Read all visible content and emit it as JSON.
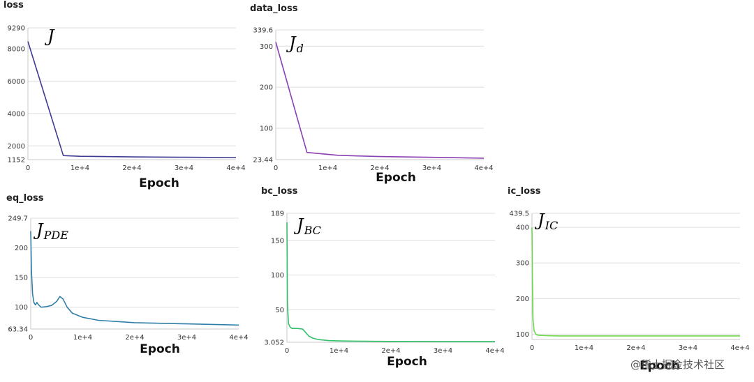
{
  "chart_data": [
    {
      "type": "line",
      "title": "loss",
      "annotation": {
        "main": "J",
        "sub": ""
      },
      "xlabel": "Epoch",
      "color": "#3f3a93",
      "xlim": [
        0,
        40000
      ],
      "ylim": [
        1152,
        9290
      ],
      "yticks": [
        1152,
        2000,
        4000,
        6000,
        8000,
        9290
      ],
      "ytick_labels": [
        "1152",
        "2000",
        "4000",
        "6000",
        "8000",
        "9290"
      ],
      "xticks": [
        0,
        10000,
        20000,
        30000,
        40000
      ],
      "xtick_labels": [
        "0",
        "1e+4",
        "2e+4",
        "3e+4",
        "4e+4"
      ],
      "series": [
        {
          "x": [
            0,
            6800,
            10000,
            20000,
            30000,
            40000
          ],
          "y": [
            8450,
            1400,
            1360,
            1320,
            1300,
            1280
          ]
        }
      ]
    },
    {
      "type": "line",
      "title": "data_loss",
      "annotation": {
        "main": "J",
        "sub": "d"
      },
      "xlabel": "Epoch",
      "color": "#8a3fb3",
      "xlim": [
        0,
        40000
      ],
      "ylim": [
        23.44,
        339.6
      ],
      "yticks": [
        23.44,
        100,
        200,
        300,
        339.6
      ],
      "ytick_labels": [
        "23.44",
        "100",
        "200",
        "300",
        "339.6"
      ],
      "xticks": [
        0,
        10000,
        20000,
        30000,
        40000
      ],
      "xtick_labels": [
        "0",
        "1e+4",
        "2e+4",
        "3e+4",
        "4e+4"
      ],
      "series": [
        {
          "x": [
            0,
            6000,
            12000,
            20000,
            30000,
            40000
          ],
          "y": [
            310,
            41,
            34,
            31,
            29,
            27
          ]
        }
      ]
    },
    {
      "type": "line",
      "title": "eq_loss",
      "annotation": {
        "main": "J",
        "sub": "PDE"
      },
      "xlabel": "Epoch",
      "color": "#2f7ea8",
      "xlim": [
        0,
        40000
      ],
      "ylim": [
        63.34,
        249.7
      ],
      "yticks": [
        63.34,
        100,
        150,
        200,
        249.7
      ],
      "ytick_labels": [
        "63.34",
        "100",
        "150",
        "200",
        "249.7"
      ],
      "xticks": [
        0,
        10000,
        20000,
        30000,
        40000
      ],
      "xtick_labels": [
        "0",
        "1e+4",
        "2e+4",
        "3e+4",
        "4e+4"
      ],
      "series": [
        {
          "x": [
            0,
            150,
            350,
            600,
            900,
            1200,
            1500,
            2000,
            3000,
            4000,
            5000,
            5600,
            6200,
            7000,
            8000,
            10000,
            13000,
            20000,
            30000,
            40000
          ],
          "y": [
            228,
            160,
            123,
            108,
            104,
            108,
            104,
            100,
            101,
            103,
            110,
            118,
            114,
            100,
            90,
            83,
            78,
            74,
            72,
            70
          ]
        }
      ]
    },
    {
      "type": "line",
      "title": "bc_loss",
      "annotation": {
        "main": "J",
        "sub": "BC"
      },
      "xlabel": "Epoch",
      "color": "#33c06a",
      "xlim": [
        0,
        40000
      ],
      "ylim": [
        3.052,
        189
      ],
      "yticks": [
        3.052,
        50,
        100,
        150,
        189
      ],
      "ytick_labels": [
        "3.052",
        "50",
        "100",
        "150",
        "189"
      ],
      "xticks": [
        0,
        10000,
        20000,
        30000,
        40000
      ],
      "xtick_labels": [
        "0",
        "1e+4",
        "2e+4",
        "3e+4",
        "4e+4"
      ],
      "series": [
        {
          "x": [
            0,
            100,
            300,
            600,
            1000,
            2000,
            3000,
            3500,
            4200,
            5000,
            6000,
            8000,
            10000,
            15000,
            20000,
            30000,
            40000
          ],
          "y": [
            176,
            60,
            30,
            25,
            23,
            23,
            22,
            18,
            12,
            9,
            7,
            5.5,
            5,
            4.5,
            4.3,
            4.2,
            4.2
          ]
        }
      ]
    },
    {
      "type": "line",
      "title": "ic_loss",
      "annotation": {
        "main": "J",
        "sub": "IC"
      },
      "xlabel": "Epoch",
      "color": "#6ad84a",
      "xlim": [
        0,
        40000
      ],
      "ylim": [
        85,
        439.5
      ],
      "yticks": [
        100,
        200,
        300,
        400,
        439.5
      ],
      "ytick_labels": [
        "100",
        "200",
        "300",
        "400",
        "439.5"
      ],
      "xticks": [
        0,
        10000,
        20000,
        30000,
        40000
      ],
      "xtick_labels": [
        "0",
        "1e+4",
        "2e+4",
        "3e+4",
        "4e+4"
      ],
      "series": [
        {
          "x": [
            0,
            80,
            200,
            400,
            700,
            1200,
            2500,
            5000,
            10000,
            20000,
            30000,
            40000
          ],
          "y": [
            400,
            250,
            140,
            110,
            100,
            97,
            96,
            95,
            95,
            95,
            95,
            95
          ]
        }
      ]
    }
  ],
  "watermark": "@稀土掘金技术社区"
}
